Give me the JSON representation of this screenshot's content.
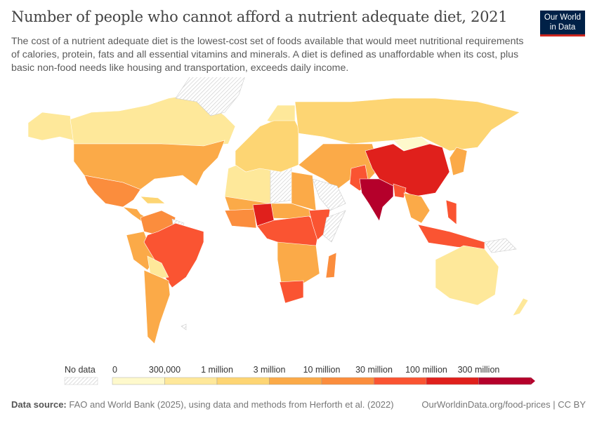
{
  "header": {
    "title": "Number of people who cannot afford a nutrient adequate diet, 2021",
    "subtitle": "The cost of a nutrient adequate diet is the lowest-cost set of foods available that would meet nutritional requirements of calories, protein, fats and all essential vitamins and minerals. A diet is defined as unaffordable when its cost, plus basic non-food needs like housing and transportation, exceeds daily income.",
    "logo": "Our World in Data"
  },
  "legend": {
    "no_data_label": "No data",
    "no_data_color": "#e6e6e6",
    "thresholds": [
      "0",
      "300,000",
      "1 million",
      "3 million",
      "10 million",
      "30 million",
      "100 million",
      "300 million"
    ],
    "colors": [
      "#fef9cc",
      "#fee89a",
      "#fdd573",
      "#fbaa48",
      "#fb8d3d",
      "#fa5432",
      "#e0201c",
      "#b5002b"
    ]
  },
  "footer": {
    "source_label": "Data source:",
    "source_text": "FAO and World Bank (2025), using data and methods from Herforth et al. (2022)",
    "url_license": "OurWorldinData.org/food-prices | CC BY"
  }
}
